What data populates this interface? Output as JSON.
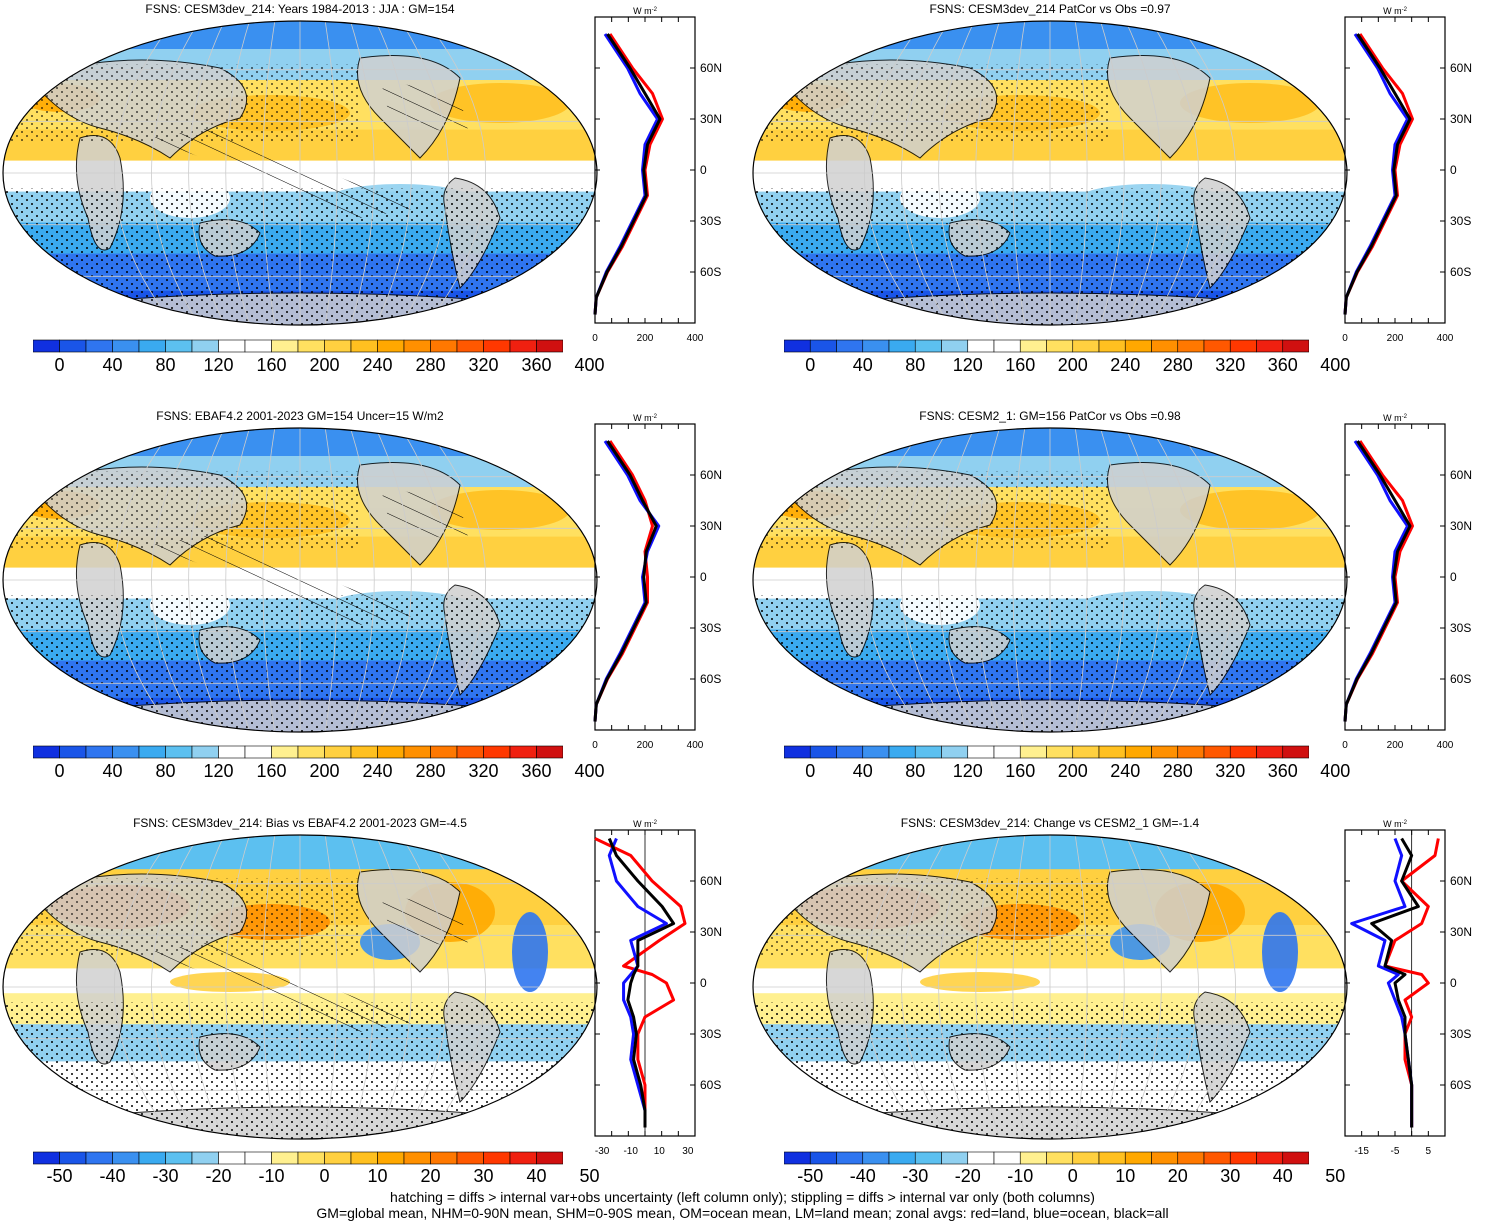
{
  "panels": [
    {
      "title": "FSNS: CESM3dev_214: Years 1984-2013 : JJA : GM=154",
      "kind": "abs",
      "hatch": true
    },
    {
      "title": "FSNS: CESM3dev_214 PatCor vs Obs =0.97",
      "kind": "abs",
      "hatch": false
    },
    {
      "title": "FSNS: EBAF4.2 2001-2023 GM=154 Uncer=15 W/m2",
      "kind": "abs",
      "hatch": true
    },
    {
      "title": "FSNS: CESM2_1: GM=156 PatCor vs Obs =0.98",
      "kind": "abs",
      "hatch": false
    },
    {
      "title": "FSNS: CESM3dev_214: Bias vs EBAF4.2 2001-2023 GM=-4.5",
      "kind": "diff",
      "hatch": true
    },
    {
      "title": "FSNS: CESM3dev_214: Change vs CESM2_1 GM=-1.4",
      "kind": "diff",
      "hatch": false
    }
  ],
  "colorbars": {
    "abs_labels": [
      "0",
      "40",
      "80",
      "120",
      "160",
      "200",
      "240",
      "280",
      "320",
      "360",
      "400"
    ],
    "diff_labels": [
      "-50",
      "-40",
      "-30",
      "-20",
      "-10",
      "0",
      "10",
      "20",
      "30",
      "40",
      "50"
    ],
    "abs_colors": [
      "#1030e0",
      "#1a55e8",
      "#2f75f0",
      "#3a90f0",
      "#3aaaf0",
      "#5cc0f0",
      "#90d0f0",
      "#ffffff",
      "#ffffff",
      "#fff090",
      "#ffe060",
      "#ffd040",
      "#ffc020",
      "#ffa800",
      "#ff9000",
      "#ff7800",
      "#ff5800",
      "#ff3800",
      "#f02010",
      "#d01010"
    ],
    "diff_colors": [
      "#1030e0",
      "#1a55e8",
      "#2f75f0",
      "#3a90f0",
      "#3aaaf0",
      "#5cc0f0",
      "#90d0f0",
      "#ffffff",
      "#ffffff",
      "#fff090",
      "#ffe060",
      "#ffd040",
      "#ffc020",
      "#ffa800",
      "#ff9000",
      "#ff7800",
      "#ff5800",
      "#ff3800",
      "#f02010",
      "#d01010"
    ]
  },
  "profile_axes": {
    "unit": "W m",
    "unit_sup": "-2",
    "lat_labels": [
      "60N",
      "30N",
      "0",
      "30S",
      "60S"
    ],
    "abs_ticks": [
      "0",
      "200",
      "400"
    ],
    "diff_ticks_left": [
      "-30",
      "-10",
      "10",
      "30"
    ],
    "diff_ticks_right": [
      "-15",
      "-5",
      "5"
    ]
  },
  "footer": {
    "line1": "hatching = diffs > internal var+obs uncertainty (left column only); stippling = diffs > internal var only (both columns)",
    "line2": "GM=global mean, NHM=0-90N mean, SHM=0-90S mean, OM=ocean mean, LM=land mean; zonal avgs: red=land, blue=ocean, black=all"
  },
  "chart_data": [
    {
      "type": "line",
      "title": "FSNS: CESM3dev_214: Years 1984-2013 : JJA : GM=154",
      "xlabel": "W m-2",
      "ylabel": "",
      "xlim": [
        0,
        400
      ],
      "y": [
        80,
        60,
        45,
        30,
        15,
        0,
        -15,
        -30,
        -45,
        -60,
        -75,
        -85
      ],
      "series": [
        {
          "name": "land",
          "values": [
            60,
            150,
            230,
            270,
            220,
            200,
            210,
            160,
            110,
            50,
            5,
            0
          ]
        },
        {
          "name": "ocean",
          "values": [
            40,
            130,
            180,
            250,
            200,
            190,
            200,
            150,
            100,
            45,
            5,
            0
          ]
        },
        {
          "name": "all",
          "values": [
            50,
            140,
            200,
            260,
            210,
            195,
            205,
            155,
            105,
            48,
            5,
            0
          ]
        }
      ]
    },
    {
      "type": "line",
      "title": "FSNS: CESM3dev_214 PatCor vs Obs =0.97",
      "xlabel": "W m-2",
      "ylabel": "",
      "xlim": [
        0,
        400
      ],
      "y": [
        80,
        60,
        45,
        30,
        15,
        0,
        -15,
        -30,
        -45,
        -60,
        -75,
        -85
      ],
      "series": [
        {
          "name": "land",
          "values": [
            60,
            150,
            230,
            270,
            220,
            200,
            210,
            160,
            110,
            50,
            5,
            0
          ]
        },
        {
          "name": "ocean",
          "values": [
            40,
            130,
            180,
            250,
            200,
            190,
            200,
            150,
            100,
            45,
            5,
            0
          ]
        },
        {
          "name": "all",
          "values": [
            50,
            140,
            200,
            260,
            210,
            195,
            205,
            155,
            105,
            48,
            5,
            0
          ]
        }
      ]
    },
    {
      "type": "line",
      "title": "FSNS: EBAF4.2 2001-2023 GM=154 Uncer=15 W/m2",
      "xlabel": "W m-2",
      "ylabel": "",
      "xlim": [
        0,
        400
      ],
      "y": [
        80,
        60,
        45,
        30,
        15,
        0,
        -15,
        -30,
        -45,
        -60,
        -75,
        -85
      ],
      "series": [
        {
          "name": "land",
          "values": [
            60,
            150,
            200,
            230,
            200,
            210,
            210,
            160,
            110,
            50,
            5,
            0
          ]
        },
        {
          "name": "ocean",
          "values": [
            40,
            130,
            180,
            255,
            210,
            190,
            200,
            150,
            100,
            45,
            5,
            0
          ]
        },
        {
          "name": "all",
          "values": [
            50,
            140,
            190,
            245,
            205,
            195,
            205,
            155,
            105,
            48,
            5,
            0
          ]
        }
      ]
    },
    {
      "type": "line",
      "title": "FSNS: CESM2_1: GM=156 PatCor vs Obs =0.98",
      "xlabel": "W m-2",
      "ylabel": "",
      "xlim": [
        0,
        400
      ],
      "y": [
        80,
        60,
        45,
        30,
        15,
        0,
        -15,
        -30,
        -45,
        -60,
        -75,
        -85
      ],
      "series": [
        {
          "name": "land",
          "values": [
            60,
            150,
            230,
            270,
            220,
            200,
            210,
            160,
            110,
            50,
            5,
            0
          ]
        },
        {
          "name": "ocean",
          "values": [
            40,
            130,
            180,
            250,
            200,
            190,
            200,
            150,
            100,
            45,
            5,
            0
          ]
        },
        {
          "name": "all",
          "values": [
            50,
            140,
            200,
            260,
            210,
            195,
            205,
            155,
            105,
            48,
            5,
            0
          ]
        }
      ]
    },
    {
      "type": "line",
      "title": "FSNS: CESM3dev_214: Bias vs EBAF4.2 2001-2023 GM=-4.5",
      "xlabel": "W m-2",
      "ylabel": "",
      "xlim": [
        -35,
        35
      ],
      "y": [
        85,
        75,
        60,
        45,
        35,
        25,
        10,
        5,
        0,
        -10,
        -20,
        -30,
        -45,
        -60,
        -75,
        -85
      ],
      "series": [
        {
          "name": "land",
          "values": [
            -35,
            -10,
            5,
            25,
            28,
            10,
            -15,
            5,
            15,
            20,
            0,
            -5,
            -5,
            0,
            0,
            0
          ]
        },
        {
          "name": "ocean",
          "values": [
            -20,
            -25,
            -20,
            -5,
            15,
            -10,
            -5,
            -10,
            -15,
            -15,
            -10,
            -8,
            -10,
            -5,
            0,
            0
          ]
        },
        {
          "name": "all",
          "values": [
            -25,
            -20,
            -5,
            12,
            20,
            -5,
            -5,
            -8,
            -10,
            -12,
            -8,
            -6,
            -8,
            -3,
            0,
            0
          ]
        }
      ]
    },
    {
      "type": "line",
      "title": "FSNS: CESM3dev_214: Change vs CESM2_1 GM=-1.4",
      "xlabel": "W m-2",
      "ylabel": "",
      "xlim": [
        -20,
        10
      ],
      "y": [
        85,
        75,
        60,
        45,
        35,
        25,
        10,
        5,
        0,
        -10,
        -20,
        -30,
        -45,
        -60,
        -75,
        -85
      ],
      "series": [
        {
          "name": "land",
          "values": [
            8,
            7,
            -3,
            5,
            3,
            -5,
            -8,
            3,
            5,
            -2,
            0,
            -2,
            -2,
            0,
            0,
            0
          ]
        },
        {
          "name": "ocean",
          "values": [
            -5,
            -3,
            -5,
            -2,
            -18,
            -8,
            -10,
            -4,
            -7,
            -5,
            -3,
            -2,
            -1,
            0,
            0,
            0
          ]
        },
        {
          "name": "all",
          "values": [
            -3,
            0,
            -3,
            2,
            -12,
            -6,
            -8,
            -2,
            -5,
            -4,
            -2,
            -2,
            -1,
            0,
            0,
            0
          ]
        }
      ]
    }
  ]
}
